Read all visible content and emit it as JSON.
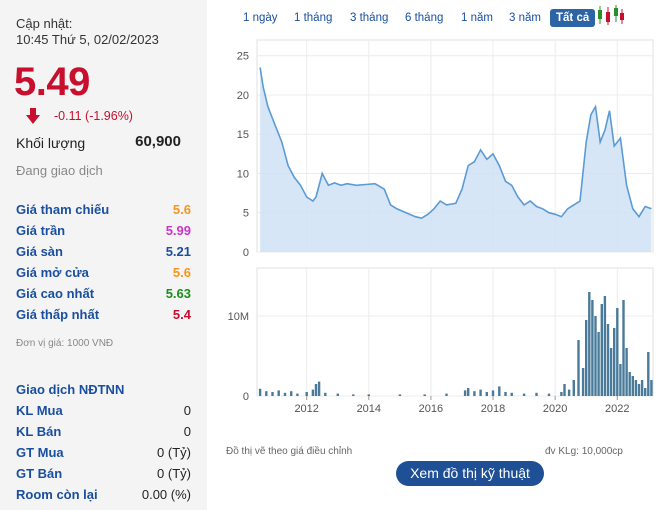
{
  "header": {
    "updated_label": "Cập nhật:",
    "updated_time": "10:45 Thứ 5, 02/02/2023"
  },
  "quote": {
    "price": "5.49",
    "change": "-0.11 (-1.96%)",
    "direction": "down",
    "volume_label": "Khối lượng",
    "volume_value": "60,900",
    "status": "Đang giao dịch"
  },
  "prices": [
    {
      "label": "Giá tham chiếu",
      "value": "5.6",
      "color": "#f7941d"
    },
    {
      "label": "Giá trần",
      "value": "5.99",
      "color": "#cc33cc"
    },
    {
      "label": "Giá sàn",
      "value": "5.21",
      "color": "#1a4fa0"
    },
    {
      "label": "Giá mở cửa",
      "value": "5.6",
      "color": "#f7941d"
    },
    {
      "label": "Giá cao nhất",
      "value": "5.63",
      "color": "#1a8f1a"
    },
    {
      "label": "Giá thấp nhất",
      "value": "5.4",
      "color": "#c8102e"
    }
  ],
  "unit_note": "Đơn vị giá: 1000 VNĐ",
  "foreign": {
    "title": "Giao dịch NĐTNN",
    "rows": [
      {
        "label": "KL Mua",
        "value": "0"
      },
      {
        "label": "KL Bán",
        "value": "0"
      },
      {
        "label": "GT Mua",
        "value": "0 (Tỷ)"
      },
      {
        "label": "GT Bán",
        "value": "0 (Tỷ)"
      },
      {
        "label": "Room còn lại",
        "value": "0.00 (%)"
      }
    ]
  },
  "range_tabs": [
    {
      "label": "1 ngày",
      "active": false
    },
    {
      "label": "1 tháng",
      "active": false
    },
    {
      "label": "3 tháng",
      "active": false
    },
    {
      "label": "6 tháng",
      "active": false
    },
    {
      "label": "1 năm",
      "active": false
    },
    {
      "label": "3 năm",
      "active": false
    },
    {
      "label": "Tất cả",
      "active": true
    }
  ],
  "icons": {
    "candlestick": "candlestick-chart-icon",
    "down_arrow": "down-arrow-icon"
  },
  "colors": {
    "down": "#c8102e",
    "accent": "#2c64a6",
    "line": "#5b9bd5",
    "area": "#cfe2f6",
    "bar": "#4a7a99"
  },
  "chart_data": [
    {
      "type": "area",
      "x": [
        2010.5,
        2010.6,
        2010.75,
        2010.9,
        2011.0,
        2011.2,
        2011.4,
        2011.6,
        2011.8,
        2012.0,
        2012.2,
        2012.3,
        2012.5,
        2012.7,
        2012.9,
        2013.1,
        2013.3,
        2013.6,
        2013.9,
        2014.2,
        2014.5,
        2014.7,
        2014.9,
        2015.2,
        2015.5,
        2015.7,
        2015.9,
        2016.1,
        2016.3,
        2016.5,
        2016.8,
        2017.0,
        2017.2,
        2017.4,
        2017.6,
        2017.8,
        2018.0,
        2018.2,
        2018.4,
        2018.6,
        2018.8,
        2019.0,
        2019.2,
        2019.4,
        2019.6,
        2019.8,
        2020.0,
        2020.2,
        2020.4,
        2020.6,
        2020.8,
        2021.0,
        2021.15,
        2021.3,
        2021.45,
        2021.6,
        2021.75,
        2021.9,
        2022.1,
        2022.3,
        2022.5,
        2022.7,
        2022.9,
        2023.1
      ],
      "values": [
        23.5,
        21,
        18.5,
        17,
        16,
        14,
        11,
        9.5,
        8.5,
        7,
        6.5,
        7,
        10,
        8.5,
        8.8,
        8.5,
        8.7,
        8.5,
        8.6,
        8.7,
        8.0,
        6.0,
        5.5,
        5.0,
        4.5,
        4.3,
        4.8,
        5.5,
        6.5,
        6.0,
        6.2,
        8.0,
        11,
        11.5,
        13,
        11.8,
        12.5,
        11,
        9,
        8.5,
        7.0,
        6.0,
        6.5,
        5.8,
        5.5,
        5.0,
        4.8,
        4.5,
        5.5,
        6.0,
        6.5,
        14,
        17.5,
        18.5,
        14,
        15.5,
        18,
        13.5,
        14.5,
        8.5,
        5.5,
        4.5,
        5.8,
        5.5
      ],
      "yticks": [
        0,
        5,
        10,
        15,
        20,
        25
      ],
      "ylim": [
        0,
        27
      ],
      "xlim": [
        2010.4,
        2023.15
      ],
      "grid": true
    },
    {
      "type": "bar",
      "x": [
        2010.5,
        2010.7,
        2010.9,
        2011.1,
        2011.3,
        2011.5,
        2011.7,
        2012.0,
        2012.2,
        2012.3,
        2012.4,
        2012.6,
        2013.0,
        2013.5,
        2014.0,
        2015.0,
        2015.8,
        2016.5,
        2017.1,
        2017.2,
        2017.4,
        2017.6,
        2017.8,
        2018.0,
        2018.2,
        2018.4,
        2018.6,
        2019.0,
        2019.4,
        2019.8,
        2020.2,
        2020.3,
        2020.45,
        2020.6,
        2020.75,
        2020.9,
        2021.0,
        2021.1,
        2021.2,
        2021.3,
        2021.4,
        2021.5,
        2021.6,
        2021.7,
        2021.8,
        2021.9,
        2022.0,
        2022.1,
        2022.2,
        2022.3,
        2022.4,
        2022.5,
        2022.6,
        2022.7,
        2022.8,
        2022.9,
        2023.0,
        2023.1
      ],
      "values": [
        0.9,
        0.6,
        0.5,
        0.7,
        0.4,
        0.6,
        0.3,
        0.5,
        0.8,
        1.5,
        1.8,
        0.4,
        0.3,
        0.2,
        0.2,
        0.2,
        0.2,
        0.3,
        0.7,
        1.0,
        0.6,
        0.8,
        0.5,
        0.7,
        1.2,
        0.5,
        0.4,
        0.3,
        0.4,
        0.3,
        0.5,
        1.5,
        0.8,
        2.0,
        7.0,
        3.5,
        9.5,
        13.0,
        12.0,
        10.0,
        8.0,
        11.5,
        12.5,
        9.0,
        6.0,
        8.5,
        11.0,
        4.0,
        12.0,
        6.0,
        3.0,
        2.5,
        2.0,
        1.5,
        2.0,
        1.0,
        5.5,
        2.0
      ],
      "yticks": [
        0,
        10
      ],
      "ytick_labels": [
        "0",
        "10M"
      ],
      "ylim": [
        0,
        16
      ],
      "xlim": [
        2010.4,
        2023.15
      ],
      "xticks": [
        2012,
        2014,
        2016,
        2018,
        2020,
        2022
      ],
      "grid": true
    }
  ],
  "footer": {
    "note_left": "Đồ thị vẽ theo giá điều chỉnh",
    "note_right": "đv KLg: 10,000cp",
    "tech_button": "Xem đồ thị kỹ thuật"
  }
}
